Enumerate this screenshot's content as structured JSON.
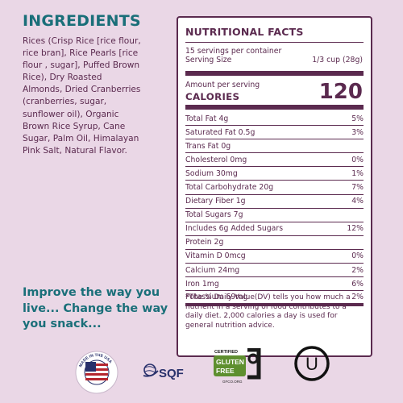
{
  "ingredients": {
    "title": "INGREDIENTS",
    "lines": [
      "Rices (Crisp Rice [rice flour,",
      "rice bran], Rice Pearls [rice",
      "flour , sugar], Puffed Brown",
      "Rice), Dry Roasted",
      "Almonds, Dried Cranberries",
      "(cranberries, sugar,",
      "sunflower oil), Organic",
      "Brown Rice Syrup, Cane",
      "Sugar, Palm Oil, Himalayan",
      "Pink Salt, Natural Flavor."
    ]
  },
  "slogan": {
    "lines": [
      "Improve the way you",
      "live... Change the way",
      "you snack..."
    ]
  },
  "nutrition": {
    "title": "NUTRITIONAL FACTS",
    "servings_per_container": "15 servings per container",
    "serving_size_label": "Serving Size",
    "serving_size_value": "1/3 cup (28g)",
    "amount_per_serving": "Amount per serving",
    "calories_label": "CALORIES",
    "calories_value": "120",
    "rows": [
      {
        "label": "Total Fat 4g",
        "dv": "5%"
      },
      {
        "label": "Saturated Fat 0.5g",
        "dv": "3%"
      },
      {
        "label": "Trans Fat 0g",
        "dv": ""
      },
      {
        "label": "Cholesterol 0mg",
        "dv": "0%"
      },
      {
        "label": "Sodium 30mg",
        "dv": "1%"
      },
      {
        "label": "Total Carbohydrate 20g",
        "dv": "7%"
      },
      {
        "label": "Dietary Fiber 1g",
        "dv": "4%"
      },
      {
        "label": "Total Sugars 7g",
        "dv": ""
      },
      {
        "label": "Includes 6g Added Sugars",
        "dv": "12%"
      },
      {
        "label": "Protein 2g",
        "dv": ""
      },
      {
        "label": "Vitamin D 0mcg",
        "dv": "0%"
      },
      {
        "label": "Calcium 24mg",
        "dv": "2%"
      },
      {
        "label": "Iron 1mg",
        "dv": "6%"
      },
      {
        "label": "Potassium 69mg",
        "dv": "2%"
      }
    ],
    "footnote_lines": [
      "*The % Daily Value(DV) tells you how much a",
      "nutrient in a serving of food contributes to a",
      "daily diet. 2,000 calories a day is used for",
      "general nutrition advice."
    ]
  },
  "certifications": {
    "usa": {
      "icon": "usa-made-seal-icon",
      "text": "MADE IN THE USA"
    },
    "sqf": {
      "icon": "sqf-logo-icon",
      "text": "SQF"
    },
    "gluten_free": {
      "icon": "gluten-free-certified-icon",
      "top": "CERTIFIED",
      "line1": "GLUTEN",
      "line2": "FREE",
      "site": "GFCO.ORG"
    },
    "kosher": {
      "icon": "ou-kosher-icon",
      "letter": "U"
    }
  },
  "colors": {
    "background": "#ead7e6",
    "teal_heading": "#1a6f79",
    "plum_text": "#5b2a4f",
    "panel": "#ffffff"
  }
}
